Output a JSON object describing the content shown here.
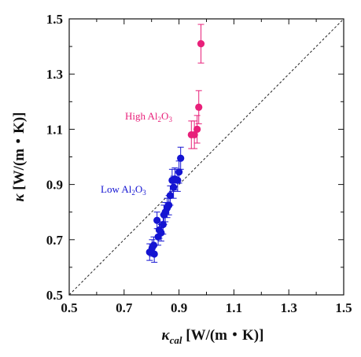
{
  "chart_data": {
    "type": "scatter",
    "xlabel": {
      "symbol": "κ",
      "sub": "cal",
      "unit": "[W/(m・K)]"
    },
    "ylabel": {
      "symbol": "κ",
      "unit": "[W/(m・K)]"
    },
    "xlim": [
      0.5,
      1.5
    ],
    "ylim": [
      0.5,
      1.5
    ],
    "xticks": [
      "0.5",
      "0.7",
      "0.9",
      "1.1",
      "1.3",
      "1.5"
    ],
    "yticks": [
      "0.5",
      "0.7",
      "0.9",
      "1.1",
      "1.3",
      "1.5"
    ],
    "grid": false,
    "reference_line": {
      "style": "dashed",
      "from": [
        0.5,
        0.5
      ],
      "to": [
        1.5,
        1.5
      ]
    },
    "series": [
      {
        "name": "High Al2O3",
        "label_parts": [
          "High Al",
          "2",
          "O",
          "3"
        ],
        "color": "#e8207a",
        "points": [
          {
            "x": 0.98,
            "y": 1.41,
            "yerr": 0.07
          },
          {
            "x": 0.972,
            "y": 1.18,
            "yerr": 0.06
          },
          {
            "x": 0.966,
            "y": 1.1,
            "yerr": 0.05
          },
          {
            "x": 0.956,
            "y": 1.08,
            "yerr": 0.05
          },
          {
            "x": 0.945,
            "y": 1.08,
            "yerr": 0.05
          }
        ]
      },
      {
        "name": "Low Al2O3",
        "label_parts": [
          "Low Al",
          "2",
          "O",
          "3"
        ],
        "color": "#1414d2",
        "points": [
          {
            "x": 0.906,
            "y": 0.995,
            "yerr": 0.04
          },
          {
            "x": 0.9,
            "y": 0.945,
            "yerr": 0.04
          },
          {
            "x": 0.895,
            "y": 0.915,
            "yerr": 0.04
          },
          {
            "x": 0.885,
            "y": 0.92,
            "yerr": 0.04
          },
          {
            "x": 0.875,
            "y": 0.915,
            "yerr": 0.04
          },
          {
            "x": 0.88,
            "y": 0.89,
            "yerr": 0.04
          },
          {
            "x": 0.868,
            "y": 0.86,
            "yerr": 0.035
          },
          {
            "x": 0.863,
            "y": 0.825,
            "yerr": 0.035
          },
          {
            "x": 0.857,
            "y": 0.815,
            "yerr": 0.035
          },
          {
            "x": 0.85,
            "y": 0.8,
            "yerr": 0.035
          },
          {
            "x": 0.845,
            "y": 0.79,
            "yerr": 0.035
          },
          {
            "x": 0.842,
            "y": 0.755,
            "yerr": 0.035
          },
          {
            "x": 0.835,
            "y": 0.725,
            "yerr": 0.03
          },
          {
            "x": 0.828,
            "y": 0.735,
            "yerr": 0.03
          },
          {
            "x": 0.824,
            "y": 0.71,
            "yerr": 0.03
          },
          {
            "x": 0.82,
            "y": 0.77,
            "yerr": 0.03
          },
          {
            "x": 0.808,
            "y": 0.68,
            "yerr": 0.03
          },
          {
            "x": 0.802,
            "y": 0.67,
            "yerr": 0.03
          },
          {
            "x": 0.793,
            "y": 0.655,
            "yerr": 0.03
          },
          {
            "x": 0.81,
            "y": 0.648,
            "yerr": 0.03
          }
        ]
      }
    ]
  }
}
